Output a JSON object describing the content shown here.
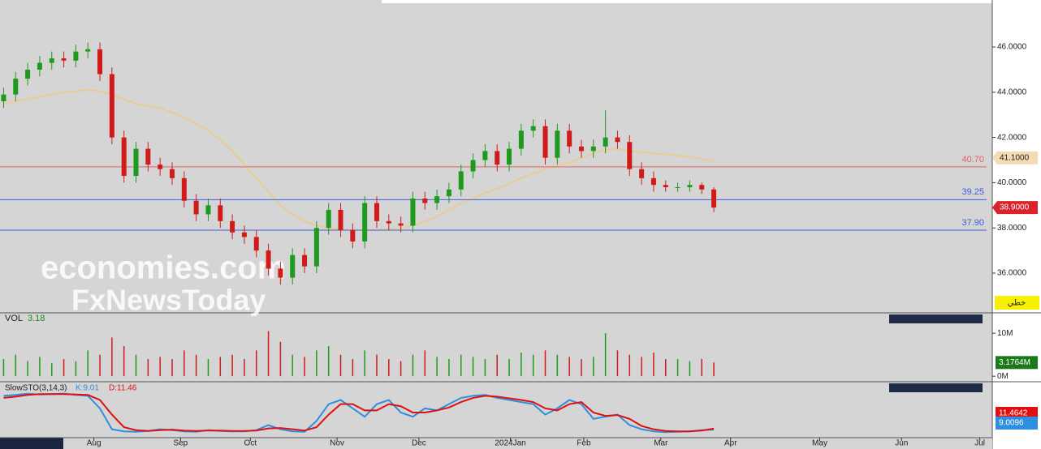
{
  "chart_data": {
    "type": "candlestick",
    "x": [
      0,
      1,
      2,
      3,
      4,
      5,
      6,
      7,
      8,
      9,
      10,
      11,
      12,
      13,
      14,
      15,
      16,
      17,
      18,
      19,
      20,
      21,
      22,
      23,
      24,
      25,
      26,
      27,
      28,
      29,
      30,
      31,
      32,
      33,
      34,
      35,
      36,
      37,
      38,
      39,
      40,
      41,
      42,
      43,
      44,
      45,
      46,
      47,
      48,
      49,
      50,
      51,
      52,
      53,
      54,
      55,
      56,
      57,
      58,
      59
    ],
    "xlim": [
      -0.3,
      82
    ],
    "xticks": [
      {
        "value": 7.5,
        "label": "Aug"
      },
      {
        "value": 14.7,
        "label": "Sep"
      },
      {
        "value": 20.5,
        "label": "Oct"
      },
      {
        "value": 27.7,
        "label": "Nov"
      },
      {
        "value": 34.5,
        "label": "Dec"
      },
      {
        "value": 42.1,
        "label": "2024Jan"
      },
      {
        "value": 48.2,
        "label": "Feb"
      },
      {
        "value": 54.6,
        "label": "Mar"
      },
      {
        "value": 60.4,
        "label": "Apr"
      },
      {
        "value": 67.8,
        "label": "May"
      },
      {
        "value": 74.6,
        "label": "Jun"
      },
      {
        "value": 81.1,
        "label": "Jul"
      }
    ],
    "open": [
      43.6,
      43.9,
      44.6,
      45.0,
      45.3,
      45.5,
      45.4,
      45.8,
      45.9,
      44.8,
      42.0,
      40.3,
      41.5,
      40.8,
      40.6,
      40.2,
      39.2,
      38.6,
      39.0,
      38.3,
      37.8,
      37.6,
      37.0,
      36.2,
      35.8,
      36.8,
      36.3,
      38.0,
      38.8,
      37.9,
      37.4,
      39.1,
      38.3,
      38.2,
      38.1,
      39.3,
      39.1,
      39.4,
      39.7,
      40.5,
      41.0,
      41.4,
      40.8,
      41.5,
      42.3,
      42.5,
      41.1,
      42.3,
      41.6,
      41.4,
      41.6,
      42.0,
      41.8,
      40.6,
      40.2,
      39.9,
      39.8,
      39.8,
      39.9,
      39.7
    ],
    "high": [
      44.2,
      44.9,
      45.3,
      45.6,
      45.8,
      45.8,
      46.1,
      46.2,
      46.2,
      45.1,
      42.3,
      41.8,
      41.8,
      41.1,
      40.9,
      40.5,
      39.5,
      39.3,
      39.3,
      38.6,
      38.1,
      37.9,
      37.3,
      36.5,
      37.1,
      37.1,
      38.3,
      39.1,
      39.1,
      38.2,
      39.4,
      39.4,
      38.6,
      38.5,
      39.6,
      39.6,
      39.7,
      40.0,
      40.8,
      41.3,
      41.7,
      41.7,
      41.8,
      42.6,
      42.8,
      42.8,
      42.6,
      42.6,
      41.9,
      41.9,
      43.2,
      42.3,
      42.1,
      40.9,
      40.5,
      40.1,
      40.0,
      40.1,
      40.0,
      39.8
    ],
    "low": [
      43.3,
      43.6,
      44.3,
      44.7,
      45.0,
      45.1,
      45.1,
      45.5,
      44.5,
      41.7,
      40.0,
      40.0,
      40.5,
      40.3,
      39.9,
      38.9,
      38.3,
      38.3,
      38.0,
      37.5,
      37.3,
      36.7,
      35.9,
      35.5,
      35.5,
      36.0,
      36.0,
      37.7,
      37.6,
      37.1,
      37.1,
      38.0,
      37.9,
      37.8,
      37.8,
      38.8,
      38.8,
      39.1,
      39.4,
      40.2,
      40.7,
      40.5,
      40.5,
      41.2,
      42.0,
      40.8,
      40.8,
      41.3,
      41.1,
      41.1,
      41.3,
      41.5,
      40.3,
      39.9,
      39.6,
      39.6,
      39.6,
      39.6,
      39.5,
      38.7
    ],
    "close": [
      43.9,
      44.6,
      45.0,
      45.3,
      45.5,
      45.4,
      45.8,
      45.9,
      44.8,
      42.0,
      40.3,
      41.5,
      40.8,
      40.6,
      40.2,
      39.2,
      38.6,
      39.0,
      38.3,
      37.8,
      37.6,
      37.0,
      36.2,
      35.8,
      36.8,
      36.3,
      38.0,
      38.8,
      37.9,
      37.4,
      39.1,
      38.3,
      38.2,
      38.1,
      39.3,
      39.1,
      39.4,
      39.7,
      40.5,
      41.0,
      41.4,
      40.8,
      41.5,
      42.3,
      42.5,
      41.1,
      42.3,
      41.6,
      41.4,
      41.6,
      42.0,
      41.8,
      40.6,
      40.2,
      39.9,
      39.8,
      39.8,
      39.9,
      39.7,
      38.9
    ],
    "up_color": "#1e9a1e",
    "down_color": "#d11b1b",
    "ylim": [
      34.28,
      47.9
    ],
    "yticks": [
      {
        "value": 36,
        "label": "36.0000"
      },
      {
        "value": 38,
        "label": "38.0000"
      },
      {
        "value": 40,
        "label": "40.0000"
      },
      {
        "value": 42,
        "label": "42.0000"
      },
      {
        "value": 44,
        "label": "44.0000"
      },
      {
        "value": 46,
        "label": "46.0000"
      }
    ],
    "moving_average": {
      "color": "#eacb92",
      "values": [
        43.5,
        43.6,
        43.7,
        43.8,
        43.9,
        44.0,
        44.05,
        44.1,
        44.05,
        43.9,
        43.7,
        43.5,
        43.4,
        43.3,
        43.1,
        42.9,
        42.6,
        42.3,
        41.9,
        41.4,
        40.8,
        40.2,
        39.6,
        39.0,
        38.6,
        38.3,
        38.1,
        38.0,
        37.95,
        37.9,
        37.9,
        37.9,
        37.95,
        38.0,
        38.1,
        38.3,
        38.5,
        38.8,
        39.1,
        39.3,
        39.55,
        39.75,
        39.95,
        40.2,
        40.4,
        40.6,
        40.75,
        40.9,
        41.1,
        41.3,
        41.45,
        41.5,
        41.4,
        41.35,
        41.3,
        41.25,
        41.2,
        41.15,
        41.05,
        40.95
      ]
    },
    "levels": [
      {
        "value": 40.7,
        "label": "40.70",
        "color": "#e06060"
      },
      {
        "value": 39.25,
        "label": "39.25",
        "color": "#3c5ee0"
      },
      {
        "value": 37.9,
        "label": "37.90",
        "color": "#3c5ee0"
      }
    ],
    "price_tags": [
      {
        "value": 41.1,
        "label": "41.1000",
        "color": "#f2ddb2",
        "text_color": "#222"
      },
      {
        "value": 38.9,
        "label": "38.9000",
        "color": "#d9222a",
        "text_color": "#fff"
      }
    ],
    "chart_style_label": "خطي",
    "watermark": [
      "economies.com",
      "FxNewsToday"
    ],
    "volume": {
      "title": "VOL",
      "last": 3.18,
      "values": [
        4,
        5,
        3.5,
        4.5,
        3,
        4,
        3.5,
        6,
        5,
        9,
        7,
        5,
        4,
        4.5,
        4,
        6,
        5,
        4,
        4.5,
        5,
        4,
        6,
        10.5,
        8,
        5,
        4.5,
        6,
        7,
        5,
        4,
        6,
        5,
        4,
        3.5,
        5,
        6,
        4.5,
        4,
        5,
        4.5,
        4,
        5,
        4,
        5.5,
        5,
        6,
        5,
        4.5,
        4,
        4.5,
        10,
        6,
        5,
        4.5,
        5.5,
        4,
        4,
        3.5,
        4,
        3.18
      ],
      "ylim": [
        -1.1,
        12.1
      ],
      "yticks": [
        {
          "value": 10,
          "label": "10M"
        },
        {
          "value": 0,
          "label": "0M"
        }
      ],
      "last_tag": {
        "value": 3.1764,
        "label": "3.1764M"
      }
    },
    "stochastic": {
      "title": "SlowSTO(3,14,3)",
      "k_label": "K:9.01",
      "d_label": "D:11.46",
      "k_color": "#2e8ee0",
      "d_color": "#e01010",
      "ylim": [
        -10,
        110
      ],
      "k": [
        90,
        92,
        95,
        93,
        94,
        95,
        92,
        90,
        60,
        10,
        5,
        4,
        6,
        10,
        8,
        5,
        4,
        8,
        6,
        5,
        5,
        8,
        20,
        10,
        5,
        4,
        30,
        70,
        80,
        60,
        40,
        70,
        80,
        50,
        40,
        60,
        55,
        70,
        85,
        90,
        92,
        85,
        80,
        75,
        70,
        45,
        60,
        80,
        70,
        35,
        40,
        45,
        20,
        10,
        5,
        3,
        4,
        5,
        8,
        9.01
      ],
      "d": [
        85,
        88,
        92,
        94,
        94,
        94,
        93,
        92,
        80,
        45,
        15,
        8,
        6,
        8,
        9,
        7,
        6,
        7,
        7,
        6,
        6,
        7,
        12,
        13,
        10,
        7,
        15,
        45,
        70,
        70,
        55,
        55,
        70,
        65,
        50,
        50,
        55,
        62,
        75,
        85,
        90,
        88,
        84,
        80,
        75,
        60,
        55,
        70,
        75,
        50,
        42,
        44,
        35,
        18,
        10,
        6,
        5,
        5,
        7,
        11.46
      ],
      "d_tag": 11.4642,
      "k_tag": 9.0096
    }
  }
}
